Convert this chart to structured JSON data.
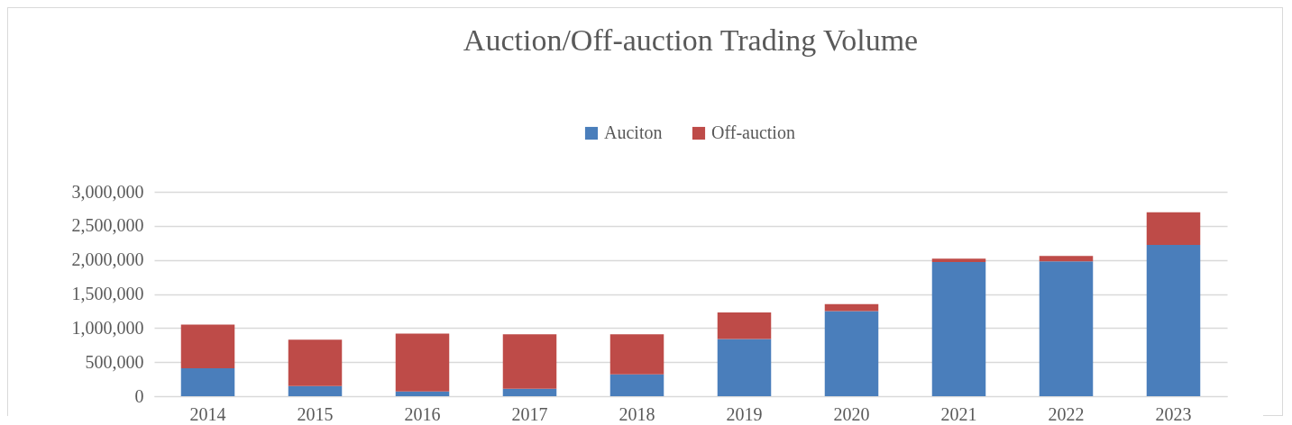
{
  "chart_data": {
    "type": "bar",
    "title": "Auction/Off-auction Trading Volume",
    "stacked": true,
    "categories": [
      "2014",
      "2015",
      "2016",
      "2017",
      "2018",
      "2019",
      "2020",
      "2021",
      "2022",
      "2023"
    ],
    "series": [
      {
        "name": "Auciton",
        "color": "#4a7ebb",
        "values": [
          410000,
          150000,
          70000,
          110000,
          320000,
          840000,
          1250000,
          1970000,
          1980000,
          2220000
        ]
      },
      {
        "name": "Off-auction",
        "color": "#be4b48",
        "values": [
          640000,
          680000,
          850000,
          800000,
          590000,
          390000,
          100000,
          50000,
          80000,
          480000
        ]
      }
    ],
    "ylim": [
      0,
      3000000
    ],
    "yticks": [
      0,
      {
        "value": 500000,
        "label": "500,000"
      },
      {
        "value": 1000000,
        "label": "1,000,000"
      },
      {
        "value": 1500000,
        "label": "1,500,000"
      },
      {
        "value": 2000000,
        "label": "2,000,000"
      },
      {
        "value": 2500000,
        "label": "2,500,000"
      },
      {
        "value": 3000000,
        "label": "3,000,000"
      }
    ],
    "grid": "y",
    "legend": "top"
  }
}
